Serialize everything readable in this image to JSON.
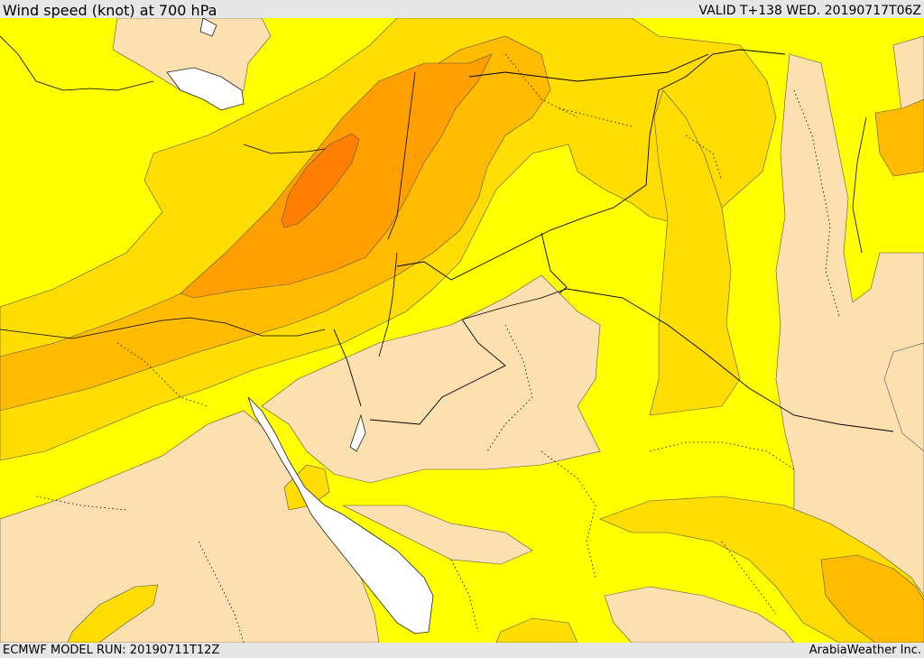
{
  "header": {
    "title": "Wind speed (knot) at 700 hPa",
    "valid": "VALID T+138 WED. 20190717T06Z"
  },
  "footer": {
    "model_run": "ECMWF MODEL RUN: 20190711T12Z",
    "credit": "ArabiaWeather Inc."
  },
  "colors": {
    "band_lowest": "#fde0b0",
    "band_low": "#ffff00",
    "band_mid": "#ffdd00",
    "band_high": "#ffbb00",
    "band_higher": "#ffa000",
    "band_peak": "#ff7f00",
    "water": "#ffffff",
    "border_line": "#000000"
  }
}
